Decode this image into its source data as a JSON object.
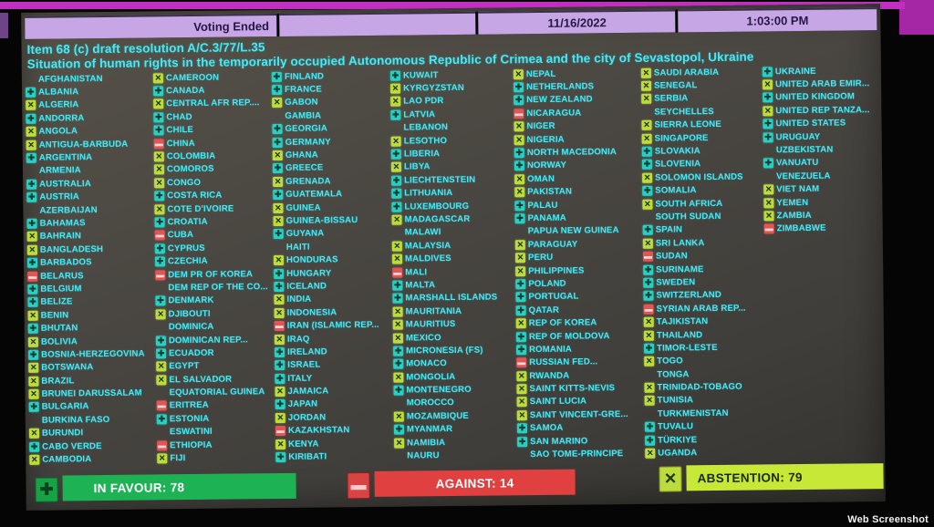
{
  "header": {
    "status": "Voting Ended",
    "date": "11/16/2022",
    "time": "1:03:00 PM"
  },
  "title": {
    "line1": "Item 68 (c) draft resolution A/C.3/77/L.35",
    "line2": "Situation of human rights in the temporarily occupied Autonomous Republic of Crimea and the city of Sevastopol, Ukraine"
  },
  "legend": {
    "favour": {
      "label": "IN FAVOUR",
      "count": 78,
      "display": "IN FAVOUR: 78",
      "icon": "plus-icon"
    },
    "against": {
      "label": "AGAINST",
      "count": 14,
      "display": "AGAINST: 14",
      "icon": "minus-icon"
    },
    "abstention": {
      "label": "ABSTENTION",
      "count": 79,
      "display": "ABSTENTION: 79",
      "icon": "x-icon"
    }
  },
  "vote_symbols": {
    "Y": "in-favour",
    "N": "against",
    "A": "abstention",
    "": "not-voting"
  },
  "colors": {
    "magenta": "#c22ec2",
    "lavender": "#c7a6e6",
    "cyan": "#4ae8f2",
    "favour": "#28cfc2",
    "favour_bar": "#1db354",
    "against": "#e05555",
    "abstain": "#bcdc3e",
    "abstain_bar": "#c8e838"
  },
  "votes": {
    "columns": [
      [
        {
          "name": "AFGHANISTAN",
          "vote": ""
        },
        {
          "name": "ALBANIA",
          "vote": "Y"
        },
        {
          "name": "ALGERIA",
          "vote": "A"
        },
        {
          "name": "ANDORRA",
          "vote": "Y"
        },
        {
          "name": "ANGOLA",
          "vote": "A"
        },
        {
          "name": "ANTIGUA-BARBUDA",
          "vote": "A"
        },
        {
          "name": "ARGENTINA",
          "vote": "Y"
        },
        {
          "name": "ARMENIA",
          "vote": ""
        },
        {
          "name": "AUSTRALIA",
          "vote": "Y"
        },
        {
          "name": "AUSTRIA",
          "vote": "Y"
        },
        {
          "name": "AZERBAIJAN",
          "vote": ""
        },
        {
          "name": "BAHAMAS",
          "vote": "Y"
        },
        {
          "name": "BAHRAIN",
          "vote": "A"
        },
        {
          "name": "BANGLADESH",
          "vote": "A"
        },
        {
          "name": "BARBADOS",
          "vote": "Y"
        },
        {
          "name": "BELARUS",
          "vote": "N"
        },
        {
          "name": "BELGIUM",
          "vote": "Y"
        },
        {
          "name": "BELIZE",
          "vote": "Y"
        },
        {
          "name": "BENIN",
          "vote": "A"
        },
        {
          "name": "BHUTAN",
          "vote": "Y"
        },
        {
          "name": "BOLIVIA",
          "vote": "A"
        },
        {
          "name": "BOSNIA-HERZEGOVINA",
          "vote": "Y"
        },
        {
          "name": "BOTSWANA",
          "vote": "A"
        },
        {
          "name": "BRAZIL",
          "vote": "A"
        },
        {
          "name": "BRUNEI DARUSSALAM",
          "vote": "A"
        },
        {
          "name": "BULGARIA",
          "vote": "Y"
        },
        {
          "name": "BURKINA FASO",
          "vote": ""
        },
        {
          "name": "BURUNDI",
          "vote": "A"
        },
        {
          "name": "CABO VERDE",
          "vote": "Y"
        },
        {
          "name": "CAMBODIA",
          "vote": "A"
        }
      ],
      [
        {
          "name": "CAMEROON",
          "vote": "A"
        },
        {
          "name": "CANADA",
          "vote": "Y"
        },
        {
          "name": "CENTRAL AFR REP....",
          "vote": "A"
        },
        {
          "name": "CHAD",
          "vote": "Y"
        },
        {
          "name": "CHILE",
          "vote": "Y"
        },
        {
          "name": "CHINA",
          "vote": "N"
        },
        {
          "name": "COLOMBIA",
          "vote": "A"
        },
        {
          "name": "COMOROS",
          "vote": "A"
        },
        {
          "name": "CONGO",
          "vote": "A"
        },
        {
          "name": "COSTA RICA",
          "vote": "Y"
        },
        {
          "name": "COTE D'IVOIRE",
          "vote": "A"
        },
        {
          "name": "CROATIA",
          "vote": "Y"
        },
        {
          "name": "CUBA",
          "vote": "N"
        },
        {
          "name": "CYPRUS",
          "vote": "Y"
        },
        {
          "name": "CZECHIA",
          "vote": "Y"
        },
        {
          "name": "DEM PR OF KOREA",
          "vote": "N"
        },
        {
          "name": "DEM REP OF THE CO...",
          "vote": ""
        },
        {
          "name": "DENMARK",
          "vote": "Y"
        },
        {
          "name": "DJIBOUTI",
          "vote": "A"
        },
        {
          "name": "DOMINICA",
          "vote": ""
        },
        {
          "name": "DOMINICAN REP...",
          "vote": "Y"
        },
        {
          "name": "ECUADOR",
          "vote": "Y"
        },
        {
          "name": "EGYPT",
          "vote": "A"
        },
        {
          "name": "EL SALVADOR",
          "vote": "A"
        },
        {
          "name": "EQUATORIAL GUINEA",
          "vote": ""
        },
        {
          "name": "ERITREA",
          "vote": "N"
        },
        {
          "name": "ESTONIA",
          "vote": "Y"
        },
        {
          "name": "ESWATINI",
          "vote": ""
        },
        {
          "name": "ETHIOPIA",
          "vote": "N"
        },
        {
          "name": "FIJI",
          "vote": "A"
        }
      ],
      [
        {
          "name": "FINLAND",
          "vote": "Y"
        },
        {
          "name": "FRANCE",
          "vote": "Y"
        },
        {
          "name": "GABON",
          "vote": "A"
        },
        {
          "name": "GAMBIA",
          "vote": ""
        },
        {
          "name": "GEORGIA",
          "vote": "Y"
        },
        {
          "name": "GERMANY",
          "vote": "Y"
        },
        {
          "name": "GHANA",
          "vote": "A"
        },
        {
          "name": "GREECE",
          "vote": "Y"
        },
        {
          "name": "GRENADA",
          "vote": "A"
        },
        {
          "name": "GUATEMALA",
          "vote": "Y"
        },
        {
          "name": "GUINEA",
          "vote": "A"
        },
        {
          "name": "GUINEA-BISSAU",
          "vote": "A"
        },
        {
          "name": "GUYANA",
          "vote": "Y"
        },
        {
          "name": "HAITI",
          "vote": ""
        },
        {
          "name": "HONDURAS",
          "vote": "A"
        },
        {
          "name": "HUNGARY",
          "vote": "Y"
        },
        {
          "name": "ICELAND",
          "vote": "Y"
        },
        {
          "name": "INDIA",
          "vote": "A"
        },
        {
          "name": "INDONESIA",
          "vote": "A"
        },
        {
          "name": "IRAN (ISLAMIC REP...",
          "vote": "N"
        },
        {
          "name": "IRAQ",
          "vote": "A"
        },
        {
          "name": "IRELAND",
          "vote": "Y"
        },
        {
          "name": "ISRAEL",
          "vote": "Y"
        },
        {
          "name": "ITALY",
          "vote": "Y"
        },
        {
          "name": "JAMAICA",
          "vote": "A"
        },
        {
          "name": "JAPAN",
          "vote": "Y"
        },
        {
          "name": "JORDAN",
          "vote": "A"
        },
        {
          "name": "KAZAKHSTAN",
          "vote": "N"
        },
        {
          "name": "KENYA",
          "vote": "A"
        },
        {
          "name": "KIRIBATI",
          "vote": "Y"
        }
      ],
      [
        {
          "name": "KUWAIT",
          "vote": "Y"
        },
        {
          "name": "KYRGYZSTAN",
          "vote": "A"
        },
        {
          "name": "LAO PDR",
          "vote": "A"
        },
        {
          "name": "LATVIA",
          "vote": "Y"
        },
        {
          "name": "LEBANON",
          "vote": ""
        },
        {
          "name": "LESOTHO",
          "vote": "A"
        },
        {
          "name": "LIBERIA",
          "vote": "Y"
        },
        {
          "name": "LIBYA",
          "vote": "A"
        },
        {
          "name": "LIECHTENSTEIN",
          "vote": "Y"
        },
        {
          "name": "LITHUANIA",
          "vote": "Y"
        },
        {
          "name": "LUXEMBOURG",
          "vote": "Y"
        },
        {
          "name": "MADAGASCAR",
          "vote": "A"
        },
        {
          "name": "MALAWI",
          "vote": ""
        },
        {
          "name": "MALAYSIA",
          "vote": "A"
        },
        {
          "name": "MALDIVES",
          "vote": "A"
        },
        {
          "name": "MALI",
          "vote": "N"
        },
        {
          "name": "MALTA",
          "vote": "Y"
        },
        {
          "name": "MARSHALL ISLANDS",
          "vote": "Y"
        },
        {
          "name": "MAURITANIA",
          "vote": "A"
        },
        {
          "name": "MAURITIUS",
          "vote": "A"
        },
        {
          "name": "MEXICO",
          "vote": "A"
        },
        {
          "name": "MICRONESIA (FS)",
          "vote": "Y"
        },
        {
          "name": "MONACO",
          "vote": "Y"
        },
        {
          "name": "MONGOLIA",
          "vote": "A"
        },
        {
          "name": "MONTENEGRO",
          "vote": "Y"
        },
        {
          "name": "MOROCCO",
          "vote": ""
        },
        {
          "name": "MOZAMBIQUE",
          "vote": "A"
        },
        {
          "name": "MYANMAR",
          "vote": "Y"
        },
        {
          "name": "NAMIBIA",
          "vote": "A"
        },
        {
          "name": "NAURU",
          "vote": ""
        }
      ],
      [
        {
          "name": "NEPAL",
          "vote": "A"
        },
        {
          "name": "NETHERLANDS",
          "vote": "Y"
        },
        {
          "name": "NEW ZEALAND",
          "vote": "Y"
        },
        {
          "name": "NICARAGUA",
          "vote": "N"
        },
        {
          "name": "NIGER",
          "vote": "A"
        },
        {
          "name": "NIGERIA",
          "vote": "A"
        },
        {
          "name": "NORTH MACEDONIA",
          "vote": "Y"
        },
        {
          "name": "NORWAY",
          "vote": "Y"
        },
        {
          "name": "OMAN",
          "vote": "A"
        },
        {
          "name": "PAKISTAN",
          "vote": "A"
        },
        {
          "name": "PALAU",
          "vote": "Y"
        },
        {
          "name": "PANAMA",
          "vote": "Y"
        },
        {
          "name": "PAPUA NEW GUINEA",
          "vote": ""
        },
        {
          "name": "PARAGUAY",
          "vote": "A"
        },
        {
          "name": "PERU",
          "vote": "A"
        },
        {
          "name": "PHILIPPINES",
          "vote": "A"
        },
        {
          "name": "POLAND",
          "vote": "Y"
        },
        {
          "name": "PORTUGAL",
          "vote": "Y"
        },
        {
          "name": "QATAR",
          "vote": "Y"
        },
        {
          "name": "REP OF KOREA",
          "vote": "A"
        },
        {
          "name": "REP OF MOLDOVA",
          "vote": "Y"
        },
        {
          "name": "ROMANIA",
          "vote": "Y"
        },
        {
          "name": "RUSSIAN FED...",
          "vote": "N"
        },
        {
          "name": "RWANDA",
          "vote": "A"
        },
        {
          "name": "SAINT KITTS-NEVIS",
          "vote": "A"
        },
        {
          "name": "SAINT LUCIA",
          "vote": "A"
        },
        {
          "name": "SAINT VINCENT-GRE...",
          "vote": "A"
        },
        {
          "name": "SAMOA",
          "vote": "Y"
        },
        {
          "name": "SAN MARINO",
          "vote": "Y"
        },
        {
          "name": "SAO TOME-PRINCIPE",
          "vote": ""
        }
      ],
      [
        {
          "name": "SAUDI ARABIA",
          "vote": "A"
        },
        {
          "name": "SENEGAL",
          "vote": "A"
        },
        {
          "name": "SERBIA",
          "vote": "A"
        },
        {
          "name": "SEYCHELLES",
          "vote": ""
        },
        {
          "name": "SIERRA LEONE",
          "vote": "A"
        },
        {
          "name": "SINGAPORE",
          "vote": "A"
        },
        {
          "name": "SLOVAKIA",
          "vote": "Y"
        },
        {
          "name": "SLOVENIA",
          "vote": "Y"
        },
        {
          "name": "SOLOMON ISLANDS",
          "vote": "A"
        },
        {
          "name": "SOMALIA",
          "vote": "Y"
        },
        {
          "name": "SOUTH AFRICA",
          "vote": "A"
        },
        {
          "name": "SOUTH SUDAN",
          "vote": ""
        },
        {
          "name": "SPAIN",
          "vote": "Y"
        },
        {
          "name": "SRI LANKA",
          "vote": "A"
        },
        {
          "name": "SUDAN",
          "vote": "N"
        },
        {
          "name": "SURINAME",
          "vote": "Y"
        },
        {
          "name": "SWEDEN",
          "vote": "Y"
        },
        {
          "name": "SWITZERLAND",
          "vote": "Y"
        },
        {
          "name": "SYRIAN ARAB REP...",
          "vote": "N"
        },
        {
          "name": "TAJIKISTAN",
          "vote": "A"
        },
        {
          "name": "THAILAND",
          "vote": "A"
        },
        {
          "name": "TIMOR-LESTE",
          "vote": "Y"
        },
        {
          "name": "TOGO",
          "vote": "A"
        },
        {
          "name": "TONGA",
          "vote": ""
        },
        {
          "name": "TRINIDAD-TOBAGO",
          "vote": "A"
        },
        {
          "name": "TUNISIA",
          "vote": "A"
        },
        {
          "name": "TURKMENISTAN",
          "vote": ""
        },
        {
          "name": "TUVALU",
          "vote": "Y"
        },
        {
          "name": "TÜRKIYE",
          "vote": "Y"
        },
        {
          "name": "UGANDA",
          "vote": "A"
        }
      ],
      [
        {
          "name": "UKRAINE",
          "vote": "Y"
        },
        {
          "name": "UNITED ARAB EMIR...",
          "vote": "A"
        },
        {
          "name": "UNITED KINGDOM",
          "vote": "Y"
        },
        {
          "name": "UNITED REP TANZA...",
          "vote": "A"
        },
        {
          "name": "UNITED STATES",
          "vote": "Y"
        },
        {
          "name": "URUGUAY",
          "vote": "Y"
        },
        {
          "name": "UZBEKISTAN",
          "vote": ""
        },
        {
          "name": "VANUATU",
          "vote": "Y"
        },
        {
          "name": "VENEZUELA",
          "vote": ""
        },
        {
          "name": "VIET NAM",
          "vote": "A"
        },
        {
          "name": "YEMEN",
          "vote": "A"
        },
        {
          "name": "ZAMBIA",
          "vote": "A"
        },
        {
          "name": "ZIMBABWE",
          "vote": "N"
        }
      ]
    ]
  },
  "watermark": "Web Screenshot"
}
